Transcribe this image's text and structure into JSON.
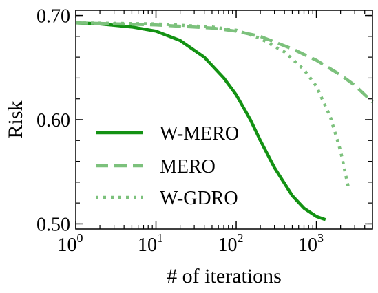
{
  "chart_data": {
    "type": "line",
    "title": "",
    "xlabel": "# of iterations",
    "ylabel": "Risk",
    "x_scale": "log",
    "xlim": [
      1,
      5000
    ],
    "ylim": [
      0.495,
      0.705
    ],
    "grid": false,
    "legend_position": "center-left",
    "x_ticks": [
      {
        "value": 1,
        "base": "10",
        "exp": "0"
      },
      {
        "value": 10,
        "base": "10",
        "exp": "1"
      },
      {
        "value": 100,
        "base": "10",
        "exp": "2"
      },
      {
        "value": 1000,
        "base": "10",
        "exp": "3"
      }
    ],
    "y_ticks": [
      {
        "value": 0.5,
        "label": "0.50"
      },
      {
        "value": 0.6,
        "label": "0.60"
      },
      {
        "value": 0.7,
        "label": "0.70"
      }
    ],
    "series": [
      {
        "name": "W-MERO",
        "style": "solid",
        "color": "#139213",
        "points": [
          [
            1,
            0.693
          ],
          [
            2,
            0.692
          ],
          [
            5,
            0.689
          ],
          [
            10,
            0.685
          ],
          [
            20,
            0.676
          ],
          [
            40,
            0.66
          ],
          [
            70,
            0.64
          ],
          [
            100,
            0.624
          ],
          [
            150,
            0.6
          ],
          [
            200,
            0.58
          ],
          [
            300,
            0.554
          ],
          [
            500,
            0.527
          ],
          [
            700,
            0.515
          ],
          [
            1000,
            0.507
          ],
          [
            1300,
            0.504
          ]
        ]
      },
      {
        "name": "MERO",
        "style": "dashed",
        "color": "#7cc17c",
        "points": [
          [
            1,
            0.693
          ],
          [
            10,
            0.691
          ],
          [
            50,
            0.688
          ],
          [
            100,
            0.685
          ],
          [
            200,
            0.68
          ],
          [
            500,
            0.668
          ],
          [
            1000,
            0.657
          ],
          [
            2000,
            0.643
          ],
          [
            3000,
            0.633
          ],
          [
            5000,
            0.617
          ]
        ]
      },
      {
        "name": "W-GDRO",
        "style": "dotted",
        "color": "#7cc17c",
        "points": [
          [
            1,
            0.693
          ],
          [
            10,
            0.692
          ],
          [
            50,
            0.689
          ],
          [
            100,
            0.686
          ],
          [
            200,
            0.678
          ],
          [
            400,
            0.665
          ],
          [
            700,
            0.648
          ],
          [
            1000,
            0.632
          ],
          [
            1500,
            0.602
          ],
          [
            2000,
            0.57
          ],
          [
            2500,
            0.535
          ]
        ]
      }
    ]
  }
}
